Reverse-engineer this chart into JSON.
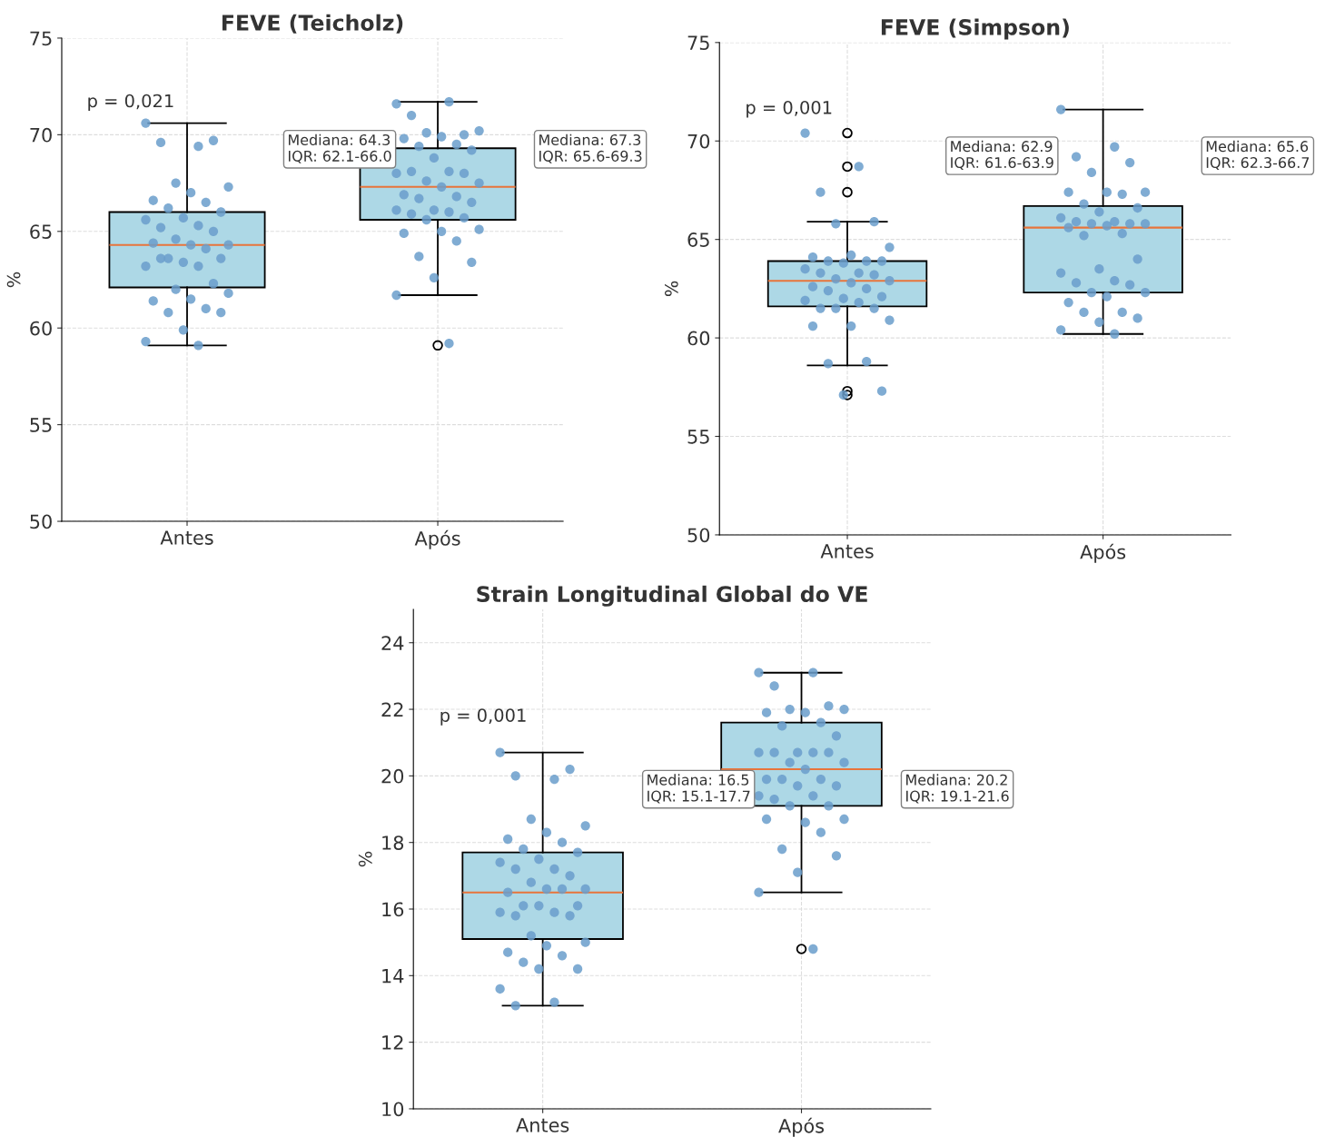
{
  "chart_data": [
    {
      "type": "box",
      "title": "FEVE (Teicholz)",
      "ylabel": "%",
      "categories": [
        "Antes",
        "Após"
      ],
      "ylim": [
        50,
        75
      ],
      "yticks": [
        50,
        55,
        60,
        65,
        70,
        75
      ],
      "grid": true,
      "boxes": [
        {
          "low": 59.1,
          "q1": 62.1,
          "median": 64.3,
          "q3": 66.0,
          "high": 70.6
        },
        {
          "low": 61.7,
          "q1": 65.6,
          "median": 67.3,
          "q3": 69.3,
          "high": 71.7,
          "outliers": [
            59.1
          ]
        }
      ],
      "series": [
        {
          "type": "scatter",
          "color": "#6a9dcb",
          "x": [
            "Antes",
            "Antes",
            "Antes",
            "Antes",
            "Antes",
            "Antes",
            "Antes",
            "Antes",
            "Antes",
            "Antes",
            "Antes",
            "Antes",
            "Antes",
            "Antes",
            "Antes",
            "Antes",
            "Antes",
            "Antes",
            "Antes",
            "Antes",
            "Antes",
            "Antes",
            "Antes",
            "Antes",
            "Antes",
            "Antes",
            "Antes",
            "Antes",
            "Antes",
            "Antes",
            "Antes",
            "Antes",
            "Antes",
            "Antes",
            "Antes",
            "Antes",
            "Antes",
            "Antes"
          ],
          "values": [
            70.6,
            69.4,
            69.6,
            69.7,
            67.5,
            67.3,
            67.0,
            66.6,
            66.5,
            66.2,
            66.0,
            65.7,
            65.6,
            65.3,
            65.2,
            65.0,
            64.6,
            64.3,
            64.3,
            64.4,
            64.1,
            63.6,
            63.6,
            63.4,
            63.2,
            63.2,
            63.6,
            62.3,
            62.0,
            61.8,
            61.5,
            61.4,
            61.0,
            60.8,
            60.8,
            59.9,
            59.3,
            59.1
          ]
        },
        {
          "type": "scatter",
          "color": "#6a9dcb",
          "x": [
            "Após",
            "Após",
            "Após",
            "Após",
            "Após",
            "Após",
            "Após",
            "Após",
            "Após",
            "Após",
            "Após",
            "Após",
            "Após",
            "Após",
            "Após",
            "Após",
            "Após",
            "Após",
            "Após",
            "Após",
            "Após",
            "Após",
            "Após",
            "Após",
            "Após",
            "Após",
            "Após",
            "Após",
            "Após",
            "Após",
            "Após",
            "Após",
            "Após",
            "Após",
            "Após",
            "Após",
            "Após",
            "Após"
          ],
          "values": [
            71.6,
            71.7,
            71.0,
            70.0,
            70.1,
            70.2,
            69.9,
            69.8,
            69.5,
            69.4,
            69.2,
            68.8,
            68.0,
            68.1,
            68.1,
            68.0,
            67.6,
            67.5,
            67.3,
            66.9,
            66.8,
            66.7,
            66.5,
            66.1,
            66.1,
            66.0,
            65.9,
            65.7,
            65.6,
            65.1,
            65.0,
            64.9,
            64.5,
            63.7,
            63.4,
            62.6,
            61.7,
            59.2
          ]
        }
      ],
      "annotations": [
        "p = 0,021",
        "Mediana: 64.3\nIQR: 62.1-66.0",
        "Mediana: 67.3\nIQR: 65.6-69.3"
      ]
    },
    {
      "type": "box",
      "title": "FEVE (Simpson)",
      "ylabel": "%",
      "categories": [
        "Antes",
        "Após"
      ],
      "ylim": [
        50,
        75
      ],
      "yticks": [
        50,
        55,
        60,
        65,
        70,
        75
      ],
      "grid": true,
      "boxes": [
        {
          "low": 58.6,
          "q1": 61.6,
          "median": 62.9,
          "q3": 63.9,
          "high": 65.9,
          "outliers": [
            70.4,
            68.7,
            67.4,
            57.3,
            57.1
          ]
        },
        {
          "low": 60.2,
          "q1": 62.3,
          "median": 65.6,
          "q3": 66.7,
          "high": 71.6
        }
      ],
      "series": [
        {
          "type": "scatter",
          "color": "#6a9dcb",
          "x": [
            "Antes",
            "Antes",
            "Antes",
            "Antes",
            "Antes",
            "Antes",
            "Antes",
            "Antes",
            "Antes",
            "Antes",
            "Antes",
            "Antes",
            "Antes",
            "Antes",
            "Antes",
            "Antes",
            "Antes",
            "Antes",
            "Antes",
            "Antes",
            "Antes",
            "Antes",
            "Antes",
            "Antes",
            "Antes",
            "Antes",
            "Antes",
            "Antes",
            "Antes",
            "Antes",
            "Antes",
            "Antes",
            "Antes",
            "Antes",
            "Antes",
            "Antes"
          ],
          "values": [
            70.4,
            68.7,
            67.4,
            65.9,
            65.8,
            64.6,
            64.2,
            64.1,
            63.9,
            63.9,
            63.9,
            63.8,
            63.5,
            63.3,
            63.3,
            63.2,
            63.0,
            62.9,
            62.8,
            62.6,
            62.5,
            62.4,
            62.1,
            62.0,
            61.9,
            61.8,
            61.5,
            61.5,
            61.5,
            60.9,
            60.6,
            60.6,
            58.8,
            58.7,
            57.3,
            57.1
          ]
        },
        {
          "type": "scatter",
          "color": "#6a9dcb",
          "x": [
            "Após",
            "Após",
            "Após",
            "Após",
            "Após",
            "Após",
            "Após",
            "Após",
            "Após",
            "Após",
            "Após",
            "Após",
            "Após",
            "Após",
            "Após",
            "Após",
            "Após",
            "Após",
            "Após",
            "Após",
            "Após",
            "Após",
            "Após",
            "Após",
            "Após",
            "Após",
            "Após",
            "Após",
            "Após",
            "Após",
            "Após",
            "Após",
            "Após",
            "Após",
            "Após",
            "Após",
            "Após",
            "Após"
          ],
          "values": [
            71.6,
            69.7,
            69.2,
            68.9,
            68.4,
            67.4,
            67.4,
            67.4,
            67.3,
            66.8,
            66.6,
            66.4,
            66.1,
            65.9,
            65.9,
            65.8,
            65.8,
            65.8,
            65.7,
            65.6,
            65.3,
            65.2,
            64.0,
            63.5,
            63.3,
            62.9,
            62.8,
            62.7,
            62.3,
            62.3,
            62.1,
            61.8,
            61.3,
            61.3,
            61.0,
            60.8,
            60.4,
            60.2
          ]
        }
      ],
      "annotations": [
        "p = 0,001",
        "Mediana: 62.9\nIQR: 61.6-63.9",
        "Mediana: 65.6\nIQR: 62.3-66.7"
      ]
    },
    {
      "type": "box",
      "title": "Strain Longitudinal Global do VE",
      "ylabel": "%",
      "categories": [
        "Antes",
        "Após"
      ],
      "ylim": [
        10,
        25
      ],
      "yticks": [
        10,
        12,
        14,
        16,
        18,
        20,
        22,
        24
      ],
      "grid": true,
      "boxes": [
        {
          "low": 13.1,
          "q1": 15.1,
          "median": 16.5,
          "q3": 17.7,
          "high": 20.7
        },
        {
          "low": 16.5,
          "q1": 19.1,
          "median": 20.2,
          "q3": 21.6,
          "high": 23.1,
          "outliers": [
            14.8
          ]
        }
      ],
      "series": [
        {
          "type": "scatter",
          "color": "#6a9dcb",
          "x": [
            "Antes",
            "Antes",
            "Antes",
            "Antes",
            "Antes",
            "Antes",
            "Antes",
            "Antes",
            "Antes",
            "Antes",
            "Antes",
            "Antes",
            "Antes",
            "Antes",
            "Antes",
            "Antes",
            "Antes",
            "Antes",
            "Antes",
            "Antes",
            "Antes",
            "Antes",
            "Antes",
            "Antes",
            "Antes",
            "Antes",
            "Antes",
            "Antes",
            "Antes",
            "Antes",
            "Antes",
            "Antes",
            "Antes",
            "Antes",
            "Antes",
            "Antes",
            "Antes",
            "Antes",
            "Antes"
          ],
          "values": [
            20.7,
            19.9,
            20.0,
            20.2,
            18.7,
            18.5,
            18.3,
            18.1,
            18.0,
            17.8,
            17.7,
            17.5,
            17.4,
            17.2,
            17.2,
            17.0,
            16.8,
            16.6,
            16.6,
            16.5,
            16.6,
            16.1,
            16.1,
            16.1,
            15.9,
            15.9,
            15.8,
            15.8,
            15.2,
            15.0,
            14.9,
            14.7,
            14.6,
            14.4,
            14.2,
            14.2,
            13.6,
            13.2,
            13.1
          ]
        },
        {
          "type": "scatter",
          "color": "#6a9dcb",
          "x": [
            "Após",
            "Após",
            "Após",
            "Após",
            "Após",
            "Após",
            "Após",
            "Após",
            "Após",
            "Após",
            "Após",
            "Após",
            "Após",
            "Após",
            "Após",
            "Após",
            "Após",
            "Após",
            "Após",
            "Após",
            "Após",
            "Após",
            "Após",
            "Após",
            "Após",
            "Após",
            "Após",
            "Após",
            "Após",
            "Após",
            "Após",
            "Após",
            "Após",
            "Após",
            "Após",
            "Após",
            "Após",
            "Após"
          ],
          "values": [
            23.1,
            23.1,
            22.7,
            22.1,
            22.0,
            22.0,
            21.9,
            21.9,
            21.6,
            21.5,
            21.2,
            20.7,
            20.7,
            20.7,
            20.7,
            20.7,
            20.4,
            20.4,
            20.2,
            19.9,
            19.9,
            19.9,
            19.7,
            19.7,
            19.4,
            19.4,
            19.3,
            19.1,
            19.1,
            18.7,
            18.6,
            18.7,
            18.3,
            17.8,
            17.6,
            17.1,
            16.5,
            14.8
          ]
        }
      ],
      "annotations": [
        "p = 0,001",
        "Mediana: 16.5\nIQR: 15.1-17.7",
        "Mediana: 20.2\nIQR: 19.1-21.6"
      ]
    }
  ]
}
